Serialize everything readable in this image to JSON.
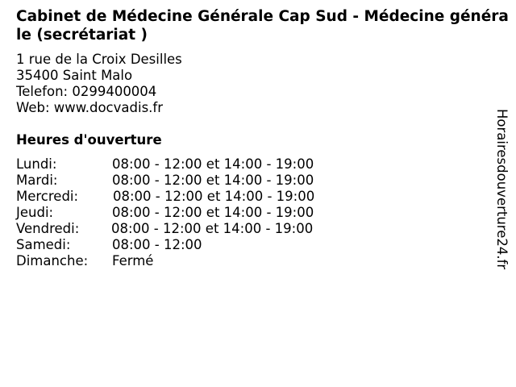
{
  "title": "Cabinet de Médecine Générale Cap Sud - Médecine générale (secrétariat )",
  "address": {
    "street": "1 rue de la Croix Desilles",
    "city": "35400 Saint Malo",
    "phone": "Telefon: 0299400004",
    "web": "Web: www.docvadis.fr"
  },
  "hours_heading": "Heures d'ouverture",
  "hours": [
    {
      "day": "Lundi:",
      "time": "08:00 - 12:00 et 14:00 - 19:00"
    },
    {
      "day": "Mardi:",
      "time": "08:00 - 12:00 et 14:00 - 19:00"
    },
    {
      "day": "Mercredi:",
      "time": "08:00 - 12:00 et 14:00 - 19:00"
    },
    {
      "day": "Jeudi:",
      "time": "08:00 - 12:00 et 14:00 - 19:00"
    },
    {
      "day": "Vendredi:",
      "time": "08:00 - 12:00 et 14:00 - 19:00"
    },
    {
      "day": "Samedi:",
      "time": "08:00 - 12:00"
    },
    {
      "day": "Dimanche:",
      "time": "Fermé"
    }
  ],
  "watermark": "Horairesdouverture24.fr"
}
